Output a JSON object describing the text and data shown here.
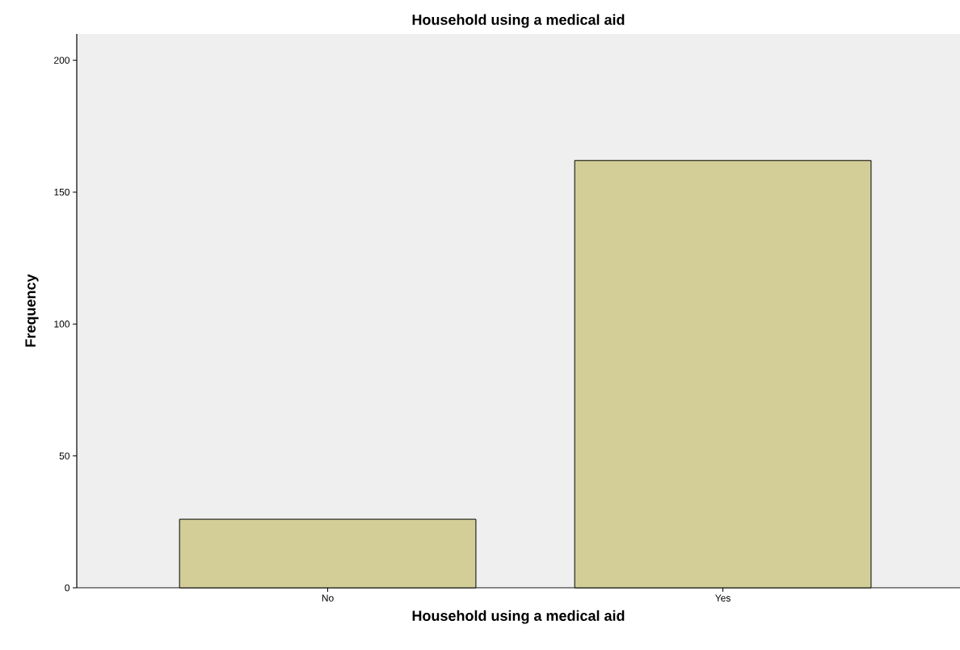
{
  "chart_data": {
    "type": "bar",
    "title": "Household using a medical aid",
    "xlabel": "Household using a medical aid",
    "ylabel": "Frequency",
    "categories": [
      "No",
      "Yes"
    ],
    "values": [
      26,
      162
    ],
    "color": "#d3ce97",
    "ylim": [
      0,
      210
    ],
    "yticks": [
      0,
      50,
      100,
      150,
      200
    ]
  }
}
